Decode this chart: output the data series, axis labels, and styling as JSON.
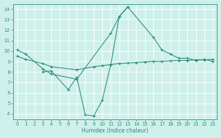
{
  "xlabel": "Humidex (Indice chaleur)",
  "line1_x": [
    0,
    1,
    3,
    4,
    7,
    11,
    12,
    13,
    16,
    17,
    18,
    19,
    20,
    21,
    22,
    23
  ],
  "line1_y": [
    10.1,
    9.7,
    8.3,
    7.8,
    7.3,
    11.7,
    13.3,
    14.2,
    11.3,
    10.1,
    9.7,
    9.3,
    9.3,
    9.1,
    9.2,
    9.0
  ],
  "line2_x": [
    0,
    1,
    3,
    4,
    7,
    9,
    10,
    11,
    12,
    13,
    14,
    15,
    16,
    17,
    18,
    19,
    20,
    21,
    22,
    23
  ],
  "line2_y": [
    9.5,
    9.2,
    8.8,
    8.5,
    8.2,
    8.5,
    8.6,
    8.7,
    8.8,
    8.85,
    8.9,
    8.95,
    9.0,
    9.0,
    9.05,
    9.1,
    9.1,
    9.15,
    9.15,
    9.2
  ],
  "line3_x": [
    3,
    4,
    6,
    7,
    8,
    9,
    10,
    11,
    12,
    13
  ],
  "line3_y": [
    8.0,
    8.1,
    6.3,
    7.5,
    3.9,
    3.8,
    5.3,
    8.7,
    13.3,
    14.2
  ],
  "color": "#2e8b7a",
  "bg_color": "#cff0ea",
  "ylim": [
    3.5,
    14.5
  ],
  "xlim": [
    -0.5,
    23.5
  ],
  "yticks": [
    4,
    5,
    6,
    7,
    8,
    9,
    10,
    11,
    12,
    13,
    14
  ],
  "xticks": [
    0,
    1,
    2,
    3,
    4,
    5,
    6,
    7,
    8,
    9,
    10,
    11,
    12,
    13,
    14,
    15,
    16,
    17,
    18,
    19,
    20,
    21,
    22,
    23
  ]
}
